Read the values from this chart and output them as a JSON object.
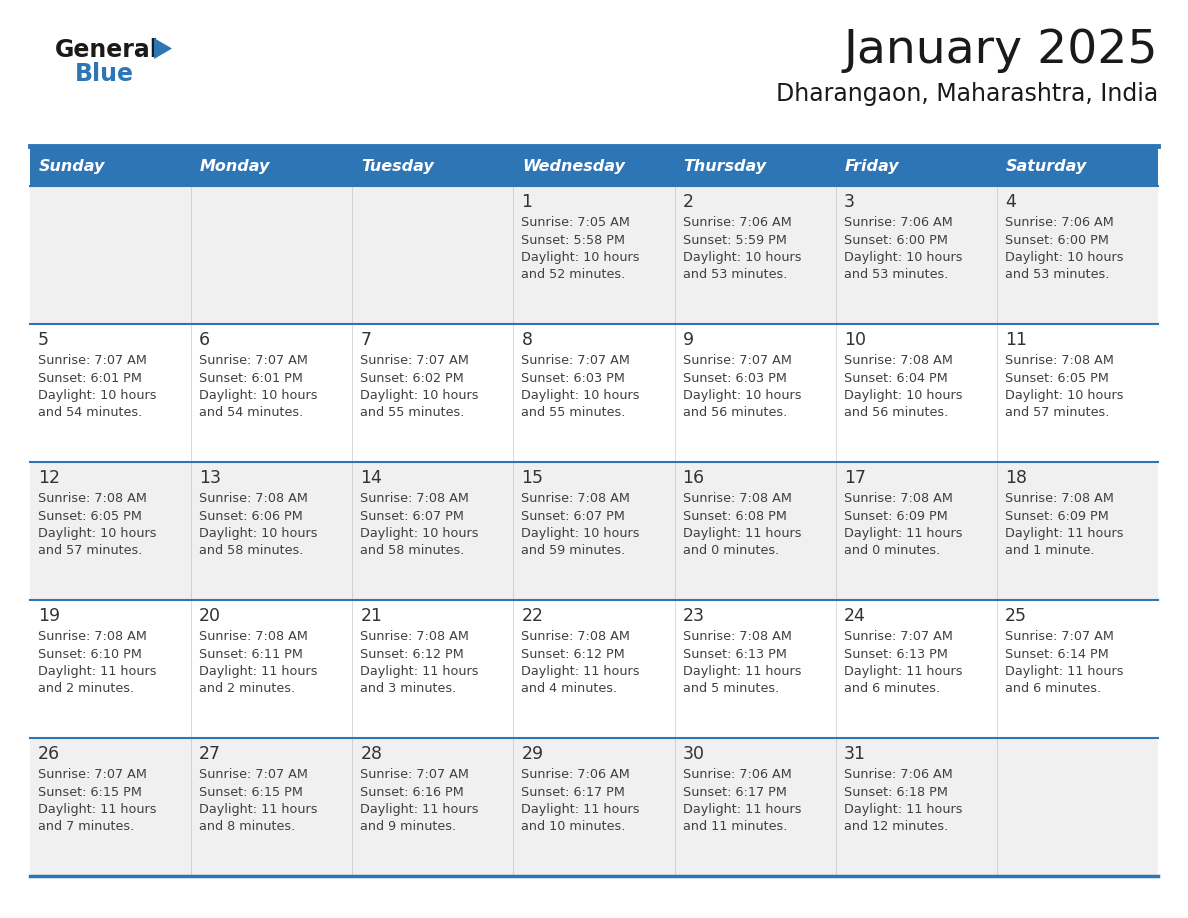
{
  "title": "January 2025",
  "subtitle": "Dharangaon, Maharashtra, India",
  "days_of_week": [
    "Sunday",
    "Monday",
    "Tuesday",
    "Wednesday",
    "Thursday",
    "Friday",
    "Saturday"
  ],
  "header_bg": "#2E75B6",
  "header_text": "#FFFFFF",
  "row_bg_odd": "#F0F0F0",
  "row_bg_even": "#FFFFFF",
  "separator_color": "#2E75B6",
  "text_color": "#404040",
  "day_num_color": "#333333",
  "logo_general_color": "#1a1a1a",
  "logo_blue_color": "#2E75B6",
  "calendar_data": [
    [
      null,
      null,
      null,
      {
        "day": "1",
        "sunrise": "7:05 AM",
        "sunset": "5:58 PM",
        "dl1": "Daylight: 10 hours",
        "dl2": "and 52 minutes."
      },
      {
        "day": "2",
        "sunrise": "7:06 AM",
        "sunset": "5:59 PM",
        "dl1": "Daylight: 10 hours",
        "dl2": "and 53 minutes."
      },
      {
        "day": "3",
        "sunrise": "7:06 AM",
        "sunset": "6:00 PM",
        "dl1": "Daylight: 10 hours",
        "dl2": "and 53 minutes."
      },
      {
        "day": "4",
        "sunrise": "7:06 AM",
        "sunset": "6:00 PM",
        "dl1": "Daylight: 10 hours",
        "dl2": "and 53 minutes."
      }
    ],
    [
      {
        "day": "5",
        "sunrise": "7:07 AM",
        "sunset": "6:01 PM",
        "dl1": "Daylight: 10 hours",
        "dl2": "and 54 minutes."
      },
      {
        "day": "6",
        "sunrise": "7:07 AM",
        "sunset": "6:01 PM",
        "dl1": "Daylight: 10 hours",
        "dl2": "and 54 minutes."
      },
      {
        "day": "7",
        "sunrise": "7:07 AM",
        "sunset": "6:02 PM",
        "dl1": "Daylight: 10 hours",
        "dl2": "and 55 minutes."
      },
      {
        "day": "8",
        "sunrise": "7:07 AM",
        "sunset": "6:03 PM",
        "dl1": "Daylight: 10 hours",
        "dl2": "and 55 minutes."
      },
      {
        "day": "9",
        "sunrise": "7:07 AM",
        "sunset": "6:03 PM",
        "dl1": "Daylight: 10 hours",
        "dl2": "and 56 minutes."
      },
      {
        "day": "10",
        "sunrise": "7:08 AM",
        "sunset": "6:04 PM",
        "dl1": "Daylight: 10 hours",
        "dl2": "and 56 minutes."
      },
      {
        "day": "11",
        "sunrise": "7:08 AM",
        "sunset": "6:05 PM",
        "dl1": "Daylight: 10 hours",
        "dl2": "and 57 minutes."
      }
    ],
    [
      {
        "day": "12",
        "sunrise": "7:08 AM",
        "sunset": "6:05 PM",
        "dl1": "Daylight: 10 hours",
        "dl2": "and 57 minutes."
      },
      {
        "day": "13",
        "sunrise": "7:08 AM",
        "sunset": "6:06 PM",
        "dl1": "Daylight: 10 hours",
        "dl2": "and 58 minutes."
      },
      {
        "day": "14",
        "sunrise": "7:08 AM",
        "sunset": "6:07 PM",
        "dl1": "Daylight: 10 hours",
        "dl2": "and 58 minutes."
      },
      {
        "day": "15",
        "sunrise": "7:08 AM",
        "sunset": "6:07 PM",
        "dl1": "Daylight: 10 hours",
        "dl2": "and 59 minutes."
      },
      {
        "day": "16",
        "sunrise": "7:08 AM",
        "sunset": "6:08 PM",
        "dl1": "Daylight: 11 hours",
        "dl2": "and 0 minutes."
      },
      {
        "day": "17",
        "sunrise": "7:08 AM",
        "sunset": "6:09 PM",
        "dl1": "Daylight: 11 hours",
        "dl2": "and 0 minutes."
      },
      {
        "day": "18",
        "sunrise": "7:08 AM",
        "sunset": "6:09 PM",
        "dl1": "Daylight: 11 hours",
        "dl2": "and 1 minute."
      }
    ],
    [
      {
        "day": "19",
        "sunrise": "7:08 AM",
        "sunset": "6:10 PM",
        "dl1": "Daylight: 11 hours",
        "dl2": "and 2 minutes."
      },
      {
        "day": "20",
        "sunrise": "7:08 AM",
        "sunset": "6:11 PM",
        "dl1": "Daylight: 11 hours",
        "dl2": "and 2 minutes."
      },
      {
        "day": "21",
        "sunrise": "7:08 AM",
        "sunset": "6:12 PM",
        "dl1": "Daylight: 11 hours",
        "dl2": "and 3 minutes."
      },
      {
        "day": "22",
        "sunrise": "7:08 AM",
        "sunset": "6:12 PM",
        "dl1": "Daylight: 11 hours",
        "dl2": "and 4 minutes."
      },
      {
        "day": "23",
        "sunrise": "7:08 AM",
        "sunset": "6:13 PM",
        "dl1": "Daylight: 11 hours",
        "dl2": "and 5 minutes."
      },
      {
        "day": "24",
        "sunrise": "7:07 AM",
        "sunset": "6:13 PM",
        "dl1": "Daylight: 11 hours",
        "dl2": "and 6 minutes."
      },
      {
        "day": "25",
        "sunrise": "7:07 AM",
        "sunset": "6:14 PM",
        "dl1": "Daylight: 11 hours",
        "dl2": "and 6 minutes."
      }
    ],
    [
      {
        "day": "26",
        "sunrise": "7:07 AM",
        "sunset": "6:15 PM",
        "dl1": "Daylight: 11 hours",
        "dl2": "and 7 minutes."
      },
      {
        "day": "27",
        "sunrise": "7:07 AM",
        "sunset": "6:15 PM",
        "dl1": "Daylight: 11 hours",
        "dl2": "and 8 minutes."
      },
      {
        "day": "28",
        "sunrise": "7:07 AM",
        "sunset": "6:16 PM",
        "dl1": "Daylight: 11 hours",
        "dl2": "and 9 minutes."
      },
      {
        "day": "29",
        "sunrise": "7:06 AM",
        "sunset": "6:17 PM",
        "dl1": "Daylight: 11 hours",
        "dl2": "and 10 minutes."
      },
      {
        "day": "30",
        "sunrise": "7:06 AM",
        "sunset": "6:17 PM",
        "dl1": "Daylight: 11 hours",
        "dl2": "and 11 minutes."
      },
      {
        "day": "31",
        "sunrise": "7:06 AM",
        "sunset": "6:18 PM",
        "dl1": "Daylight: 11 hours",
        "dl2": "and 12 minutes."
      },
      null
    ]
  ]
}
